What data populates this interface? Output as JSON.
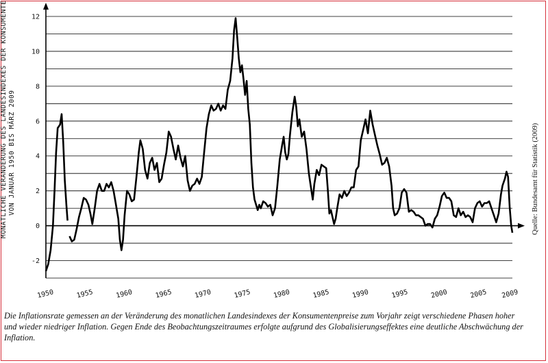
{
  "chart_data": {
    "type": "line",
    "ylabel_lines": [
      "MONATLICHE VERÄNDERUNG DES LANDESINDEXES DER KONSUMENTENPREISE",
      "VON JANUAR 1950 BIS MÄRZ 2009"
    ],
    "xlim": [
      1950,
      2009.25
    ],
    "ylim": [
      -3,
      12
    ],
    "yticks": [
      -2,
      0,
      2,
      4,
      6,
      8,
      10,
      12
    ],
    "xticks": [
      1950,
      1955,
      1960,
      1965,
      1970,
      1975,
      1980,
      1985,
      1990,
      1995,
      2000,
      2005,
      2009
    ],
    "grid": "horizontal",
    "series": [
      {
        "values": [
          [
            1950.0,
            -2.6
          ],
          [
            1950.3,
            -2.2
          ],
          [
            1950.6,
            -1.4
          ],
          [
            1950.9,
            0.0
          ],
          [
            1951.1,
            2.0
          ],
          [
            1951.3,
            4.2
          ],
          [
            1951.5,
            5.6
          ],
          [
            1951.8,
            5.8
          ],
          [
            1952.0,
            6.4
          ],
          [
            1952.2,
            4.8
          ],
          [
            1952.4,
            2.6
          ],
          [
            1952.6,
            1.2
          ],
          [
            1952.75,
            0.3
          ],
          [
            1952.85,
            null
          ],
          [
            1953.0,
            -0.6
          ],
          [
            1953.3,
            -0.9
          ],
          [
            1953.6,
            -0.8
          ],
          [
            1953.9,
            -0.2
          ],
          [
            1954.2,
            0.5
          ],
          [
            1954.5,
            1.0
          ],
          [
            1954.8,
            1.6
          ],
          [
            1955.1,
            1.5
          ],
          [
            1955.4,
            1.2
          ],
          [
            1955.7,
            0.6
          ],
          [
            1955.9,
            0.1
          ],
          [
            1956.2,
            1.0
          ],
          [
            1956.5,
            2.0
          ],
          [
            1956.8,
            2.4
          ],
          [
            1957.1,
            2.0
          ],
          [
            1957.4,
            2.0
          ],
          [
            1957.7,
            2.4
          ],
          [
            1958.0,
            2.2
          ],
          [
            1958.3,
            2.5
          ],
          [
            1958.6,
            2.0
          ],
          [
            1958.9,
            1.2
          ],
          [
            1959.2,
            0.4
          ],
          [
            1959.4,
            -0.8
          ],
          [
            1959.6,
            -1.4
          ],
          [
            1959.8,
            -0.8
          ],
          [
            1960.0,
            0.6
          ],
          [
            1960.3,
            2.0
          ],
          [
            1960.6,
            1.8
          ],
          [
            1960.9,
            1.4
          ],
          [
            1961.2,
            1.5
          ],
          [
            1961.5,
            2.8
          ],
          [
            1961.8,
            4.2
          ],
          [
            1962.0,
            4.9
          ],
          [
            1962.3,
            4.4
          ],
          [
            1962.6,
            3.2
          ],
          [
            1962.9,
            2.7
          ],
          [
            1963.2,
            3.6
          ],
          [
            1963.5,
            3.9
          ],
          [
            1963.8,
            3.2
          ],
          [
            1964.1,
            3.6
          ],
          [
            1964.4,
            2.5
          ],
          [
            1964.7,
            2.7
          ],
          [
            1965.0,
            3.5
          ],
          [
            1965.3,
            4.2
          ],
          [
            1965.6,
            5.4
          ],
          [
            1965.9,
            5.1
          ],
          [
            1966.2,
            4.4
          ],
          [
            1966.5,
            3.8
          ],
          [
            1966.8,
            4.6
          ],
          [
            1967.1,
            3.9
          ],
          [
            1967.4,
            3.4
          ],
          [
            1967.7,
            4.0
          ],
          [
            1968.0,
            2.6
          ],
          [
            1968.3,
            2.0
          ],
          [
            1968.6,
            2.3
          ],
          [
            1968.9,
            2.4
          ],
          [
            1969.2,
            2.7
          ],
          [
            1969.5,
            2.4
          ],
          [
            1969.8,
            2.8
          ],
          [
            1970.1,
            4.2
          ],
          [
            1970.4,
            5.6
          ],
          [
            1970.7,
            6.4
          ],
          [
            1971.0,
            6.9
          ],
          [
            1971.3,
            6.6
          ],
          [
            1971.6,
            6.7
          ],
          [
            1971.9,
            7.0
          ],
          [
            1972.2,
            6.6
          ],
          [
            1972.5,
            6.9
          ],
          [
            1972.8,
            6.7
          ],
          [
            1973.1,
            7.8
          ],
          [
            1973.4,
            8.3
          ],
          [
            1973.7,
            9.6
          ],
          [
            1973.9,
            11.2
          ],
          [
            1974.1,
            11.9
          ],
          [
            1974.3,
            10.8
          ],
          [
            1974.5,
            9.6
          ],
          [
            1974.7,
            8.8
          ],
          [
            1974.9,
            9.2
          ],
          [
            1975.1,
            8.4
          ],
          [
            1975.3,
            7.5
          ],
          [
            1975.5,
            8.3
          ],
          [
            1975.7,
            6.7
          ],
          [
            1975.9,
            5.8
          ],
          [
            1976.1,
            3.6
          ],
          [
            1976.3,
            2.2
          ],
          [
            1976.5,
            1.5
          ],
          [
            1976.7,
            1.2
          ],
          [
            1976.9,
            0.9
          ],
          [
            1977.1,
            1.2
          ],
          [
            1977.3,
            1.0
          ],
          [
            1977.6,
            1.4
          ],
          [
            1977.9,
            1.3
          ],
          [
            1978.2,
            1.1
          ],
          [
            1978.5,
            1.2
          ],
          [
            1978.8,
            0.6
          ],
          [
            1979.1,
            1.0
          ],
          [
            1979.4,
            2.3
          ],
          [
            1979.7,
            3.8
          ],
          [
            1980.0,
            4.6
          ],
          [
            1980.2,
            5.1
          ],
          [
            1980.4,
            4.2
          ],
          [
            1980.6,
            3.8
          ],
          [
            1980.8,
            4.1
          ],
          [
            1981.0,
            5.2
          ],
          [
            1981.3,
            6.5
          ],
          [
            1981.6,
            7.4
          ],
          [
            1981.8,
            6.8
          ],
          [
            1982.0,
            5.7
          ],
          [
            1982.2,
            6.1
          ],
          [
            1982.5,
            5.1
          ],
          [
            1982.8,
            5.4
          ],
          [
            1983.1,
            4.4
          ],
          [
            1983.4,
            3.0
          ],
          [
            1983.7,
            2.1
          ],
          [
            1983.9,
            1.5
          ],
          [
            1984.1,
            2.4
          ],
          [
            1984.4,
            3.2
          ],
          [
            1984.7,
            2.9
          ],
          [
            1985.0,
            3.5
          ],
          [
            1985.3,
            3.4
          ],
          [
            1985.6,
            3.3
          ],
          [
            1985.8,
            2.1
          ],
          [
            1986.0,
            0.7
          ],
          [
            1986.2,
            0.9
          ],
          [
            1986.4,
            0.5
          ],
          [
            1986.6,
            0.1
          ],
          [
            1986.8,
            0.4
          ],
          [
            1987.0,
            1.0
          ],
          [
            1987.3,
            1.8
          ],
          [
            1987.6,
            1.6
          ],
          [
            1987.9,
            2.0
          ],
          [
            1988.2,
            1.7
          ],
          [
            1988.5,
            1.9
          ],
          [
            1988.8,
            2.2
          ],
          [
            1989.1,
            2.2
          ],
          [
            1989.4,
            3.2
          ],
          [
            1989.7,
            3.4
          ],
          [
            1990.0,
            4.9
          ],
          [
            1990.3,
            5.5
          ],
          [
            1990.6,
            6.1
          ],
          [
            1990.9,
            5.3
          ],
          [
            1991.2,
            6.6
          ],
          [
            1991.5,
            5.8
          ],
          [
            1991.8,
            5.2
          ],
          [
            1992.1,
            4.6
          ],
          [
            1992.4,
            4.1
          ],
          [
            1992.7,
            3.5
          ],
          [
            1993.0,
            3.6
          ],
          [
            1993.3,
            3.9
          ],
          [
            1993.6,
            3.4
          ],
          [
            1993.9,
            2.3
          ],
          [
            1994.1,
            1.0
          ],
          [
            1994.3,
            0.6
          ],
          [
            1994.6,
            0.7
          ],
          [
            1994.9,
            1.0
          ],
          [
            1995.2,
            1.9
          ],
          [
            1995.5,
            2.1
          ],
          [
            1995.8,
            1.9
          ],
          [
            1996.1,
            0.8
          ],
          [
            1996.4,
            0.9
          ],
          [
            1996.7,
            0.8
          ],
          [
            1997.0,
            0.6
          ],
          [
            1997.3,
            0.6
          ],
          [
            1997.6,
            0.5
          ],
          [
            1997.9,
            0.4
          ],
          [
            1998.2,
            0.0
          ],
          [
            1998.5,
            0.1
          ],
          [
            1998.8,
            0.1
          ],
          [
            1999.1,
            -0.1
          ],
          [
            1999.4,
            0.4
          ],
          [
            1999.7,
            0.6
          ],
          [
            2000.0,
            1.1
          ],
          [
            2000.3,
            1.7
          ],
          [
            2000.6,
            1.9
          ],
          [
            2000.9,
            1.6
          ],
          [
            2001.2,
            1.6
          ],
          [
            2001.5,
            1.4
          ],
          [
            2001.8,
            0.6
          ],
          [
            2002.1,
            0.5
          ],
          [
            2002.4,
            1.0
          ],
          [
            2002.7,
            0.6
          ],
          [
            2003.0,
            0.8
          ],
          [
            2003.3,
            0.5
          ],
          [
            2003.6,
            0.6
          ],
          [
            2003.9,
            0.5
          ],
          [
            2004.2,
            0.2
          ],
          [
            2004.5,
            1.0
          ],
          [
            2004.8,
            1.3
          ],
          [
            2005.1,
            1.4
          ],
          [
            2005.4,
            1.1
          ],
          [
            2005.7,
            1.3
          ],
          [
            2006.0,
            1.3
          ],
          [
            2006.3,
            1.4
          ],
          [
            2006.6,
            1.0
          ],
          [
            2006.9,
            0.6
          ],
          [
            2007.2,
            0.2
          ],
          [
            2007.5,
            0.7
          ],
          [
            2007.8,
            1.8
          ],
          [
            2008.0,
            2.3
          ],
          [
            2008.3,
            2.7
          ],
          [
            2008.5,
            3.1
          ],
          [
            2008.7,
            2.8
          ],
          [
            2008.9,
            1.1
          ],
          [
            2009.1,
            0.0
          ],
          [
            2009.25,
            -0.4
          ]
        ]
      }
    ]
  },
  "caption": "Die Inflationsrate gemessen an der Veränderung des monatlichen Landesindexes der Konsumentenpreise zum Vorjahr zeigt verschiedene Phasen hoher und wieder niedriger Inflation. Gegen Ende des Beobachtungszeitraumes erfolgte aufgrund des Globalisierungseffektes eine deutliche Abschwächung der Inflation.",
  "source": "Quelle: Bundesamt für Statistik (2009)",
  "colors": {
    "frame": "#d6303a",
    "line": "#000000",
    "grid": "#000000"
  }
}
